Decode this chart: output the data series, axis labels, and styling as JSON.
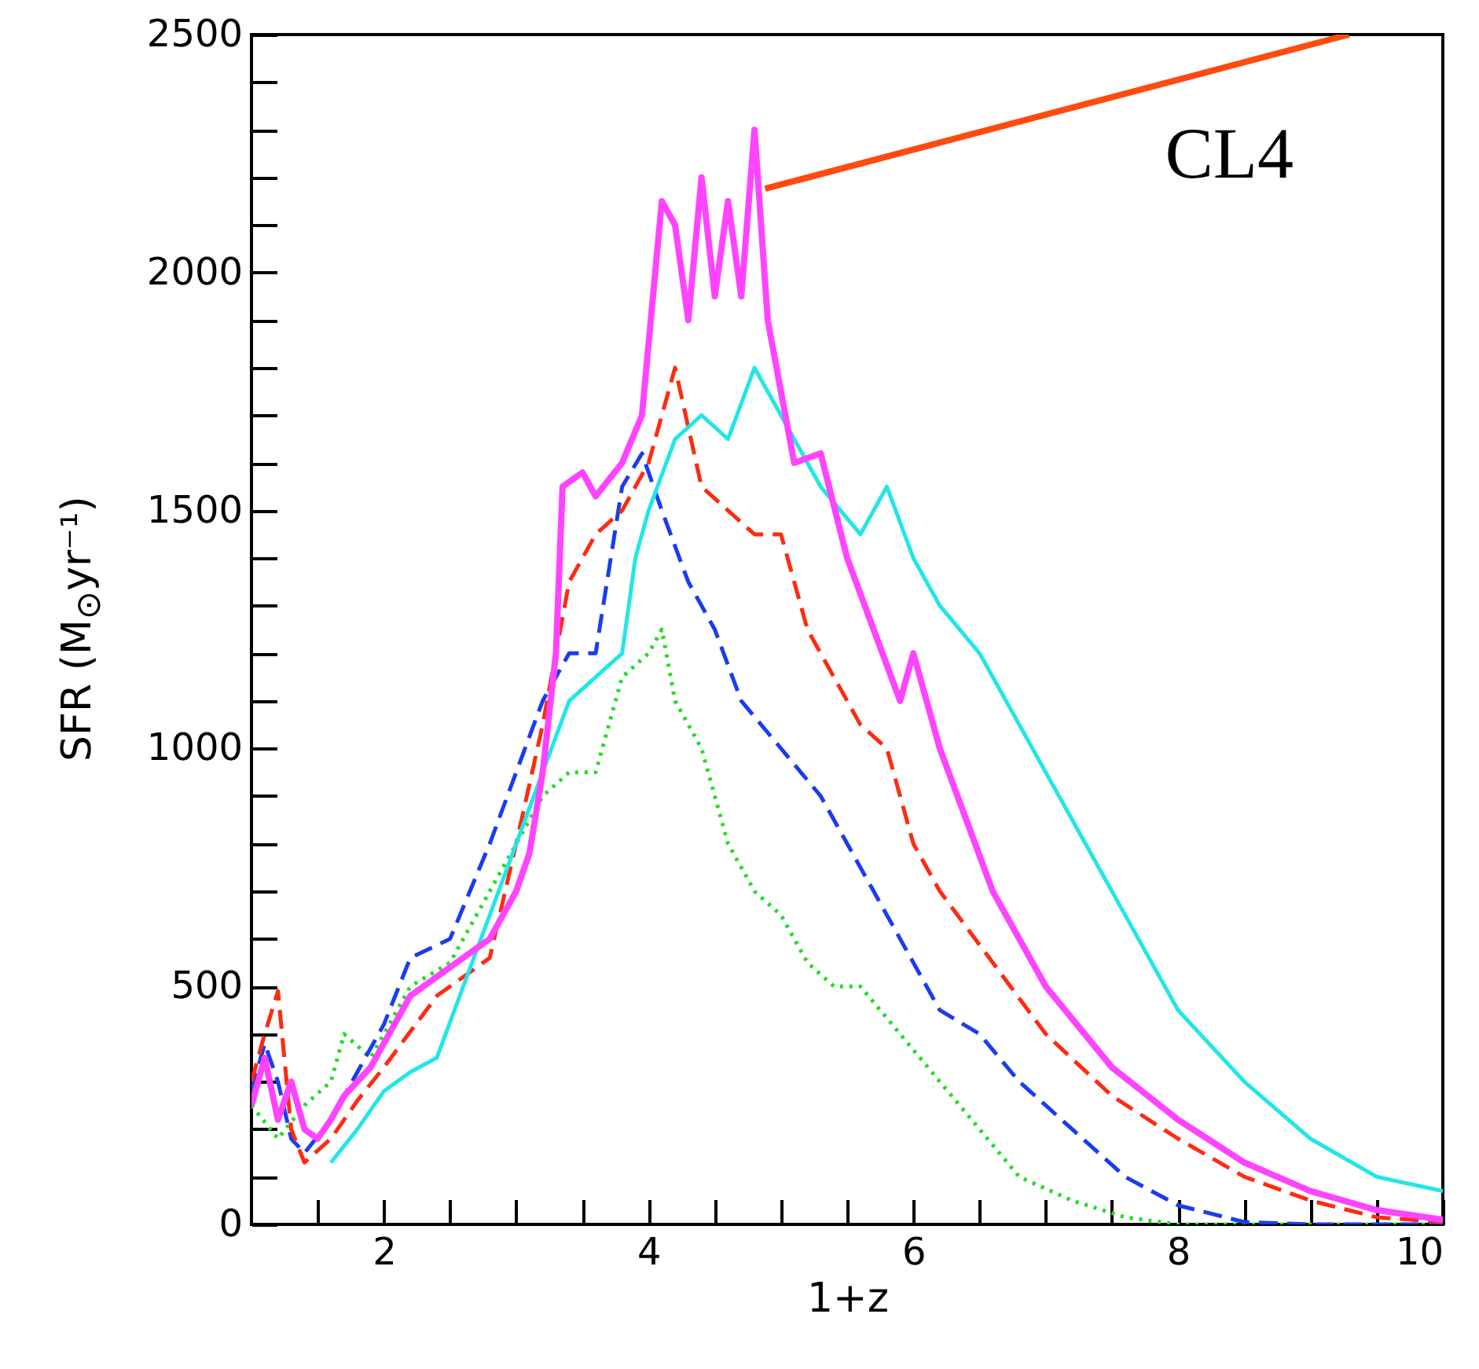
{
  "chart_data": {
    "type": "line",
    "xlabel": "1+z",
    "ylabel": "SFR (M$_{⊙}$yr⁻¹)",
    "annotations": [
      "CL4"
    ],
    "xlim": [
      1,
      10
    ],
    "ylim": [
      0,
      2500
    ],
    "xticks": [
      {
        "value": 1.5,
        "label": null
      },
      2,
      {
        "value": 2.5,
        "label": null
      },
      {
        "value": 3,
        "label": null
      },
      {
        "value": 3.5,
        "label": null
      },
      4,
      {
        "value": 4.5,
        "label": null
      },
      {
        "value": 5,
        "label": null
      },
      {
        "value": 5.5,
        "label": null
      },
      6,
      {
        "value": 6.5,
        "label": null
      },
      {
        "value": 7,
        "label": null
      },
      {
        "value": 7.5,
        "label": null
      },
      8,
      {
        "value": 8.5,
        "label": null
      },
      {
        "value": 9,
        "label": null
      },
      {
        "value": 9.5,
        "label": null
      },
      10
    ],
    "yticks": [
      0,
      {
        "value": 100,
        "label": null
      },
      {
        "value": 200,
        "label": null
      },
      {
        "value": 300,
        "label": null
      },
      {
        "value": 400,
        "label": null
      },
      500,
      {
        "value": 600,
        "label": null
      },
      {
        "value": 700,
        "label": null
      },
      {
        "value": 800,
        "label": null
      },
      {
        "value": 900,
        "label": null
      },
      1000,
      {
        "value": 1100,
        "label": null
      },
      {
        "value": 1200,
        "label": null
      },
      {
        "value": 1300,
        "label": null
      },
      {
        "value": 1400,
        "label": null
      },
      1500,
      {
        "value": 1600,
        "label": null
      },
      {
        "value": 1700,
        "label": null
      },
      {
        "value": 1800,
        "label": null
      },
      {
        "value": 1900,
        "label": null
      },
      2000,
      {
        "value": 2100,
        "label": null
      },
      {
        "value": 2200,
        "label": null
      },
      {
        "value": 2300,
        "label": null
      },
      {
        "value": 2400,
        "label": null
      },
      2500
    ],
    "grid": false,
    "series": [
      {
        "color": "#22dd22",
        "line_style": "dotted",
        "x": [
          1.0,
          1.2,
          1.4,
          1.6,
          1.7,
          1.9,
          2.2,
          2.5,
          2.8,
          3.0,
          3.2,
          3.4,
          3.6,
          3.8,
          4.0,
          4.1,
          4.2,
          4.4,
          4.6,
          4.8,
          5.0,
          5.2,
          5.4,
          5.6,
          5.9,
          6.2,
          6.5,
          6.8,
          7.2,
          7.6,
          8.0,
          10
        ],
        "values": [
          250,
          180,
          250,
          300,
          400,
          350,
          500,
          550,
          700,
          800,
          900,
          950,
          950,
          1150,
          1200,
          1250,
          1100,
          1000,
          800,
          700,
          650,
          550,
          500,
          500,
          400,
          300,
          200,
          100,
          50,
          15,
          0,
          0
        ]
      },
      {
        "color": "#1a3cf0",
        "line_style": "dashed",
        "x": [
          1.0,
          1.1,
          1.2,
          1.3,
          1.4,
          1.6,
          1.8,
          2.0,
          2.2,
          2.5,
          2.8,
          3.0,
          3.2,
          3.4,
          3.6,
          3.8,
          3.95,
          4.1,
          4.3,
          4.5,
          4.7,
          5.0,
          5.3,
          5.5,
          5.7,
          6.0,
          6.2,
          6.5,
          6.8,
          7.2,
          7.6,
          8.0,
          8.5,
          9.0,
          10
        ],
        "values": [
          280,
          380,
          300,
          180,
          150,
          220,
          320,
          420,
          560,
          600,
          800,
          950,
          1100,
          1200,
          1200,
          1550,
          1620,
          1500,
          1350,
          1250,
          1100,
          1000,
          900,
          800,
          700,
          550,
          450,
          400,
          300,
          200,
          100,
          40,
          5,
          0,
          0
        ]
      },
      {
        "color": "#ff2a10",
        "line_style": "dashed",
        "x": [
          1.0,
          1.1,
          1.2,
          1.3,
          1.4,
          1.6,
          1.8,
          2.0,
          2.4,
          2.8,
          3.0,
          3.2,
          3.4,
          3.6,
          3.8,
          4.0,
          4.2,
          4.4,
          4.6,
          4.8,
          5.0,
          5.2,
          5.4,
          5.6,
          5.8,
          6.0,
          6.2,
          6.6,
          7.0,
          7.5,
          8.0,
          8.5,
          9.0,
          9.5,
          10
        ],
        "values": [
          300,
          400,
          490,
          200,
          130,
          180,
          260,
          330,
          480,
          560,
          800,
          1050,
          1350,
          1450,
          1500,
          1600,
          1800,
          1550,
          1500,
          1450,
          1450,
          1250,
          1150,
          1050,
          1000,
          800,
          700,
          550,
          400,
          270,
          180,
          100,
          50,
          15,
          5
        ]
      },
      {
        "color": "#22e6e6",
        "line_style": "solid",
        "x": [
          1.6,
          1.8,
          2.0,
          2.2,
          2.4,
          2.6,
          2.8,
          3.0,
          3.2,
          3.4,
          3.6,
          3.8,
          3.9,
          4.0,
          4.2,
          4.4,
          4.6,
          4.8,
          5.0,
          5.3,
          5.6,
          5.8,
          6.0,
          6.2,
          6.5,
          6.8,
          7.0,
          7.3,
          7.6,
          8.0,
          8.5,
          9.0,
          9.5,
          10
        ],
        "values": [
          130,
          200,
          280,
          320,
          350,
          500,
          650,
          800,
          950,
          1100,
          1150,
          1200,
          1400,
          1500,
          1650,
          1700,
          1650,
          1800,
          1700,
          1550,
          1450,
          1550,
          1400,
          1300,
          1200,
          1050,
          950,
          800,
          650,
          450,
          300,
          180,
          100,
          70
        ]
      },
      {
        "color": "#ff44ff",
        "line_style": "solid",
        "x": [
          1.0,
          1.1,
          1.2,
          1.3,
          1.4,
          1.5,
          1.6,
          1.7,
          1.9,
          2.0,
          2.2,
          2.4,
          2.6,
          2.8,
          3.0,
          3.1,
          3.2,
          3.3,
          3.35,
          3.5,
          3.6,
          3.8,
          3.95,
          4.0,
          4.1,
          4.2,
          4.3,
          4.4,
          4.5,
          4.6,
          4.7,
          4.8,
          4.9,
          5.0,
          5.1,
          5.3,
          5.5,
          5.7,
          5.9,
          6.0,
          6.2,
          6.4,
          6.6,
          6.8,
          7.0,
          7.5,
          8.0,
          8.5,
          9.0,
          9.5,
          10
        ],
        "values": [
          250,
          350,
          220,
          300,
          200,
          180,
          220,
          270,
          330,
          380,
          480,
          520,
          560,
          600,
          700,
          780,
          950,
          1200,
          1550,
          1580,
          1530,
          1600,
          1700,
          1850,
          2150,
          2100,
          1900,
          2200,
          1950,
          2150,
          1950,
          2300,
          1900,
          1750,
          1600,
          1620,
          1400,
          1250,
          1100,
          1200,
          1000,
          850,
          700,
          600,
          500,
          330,
          220,
          130,
          70,
          30,
          10
        ]
      },
      {
        "color": "#ff4a10",
        "line_style": "solid",
        "x": [
          4.88,
          9.29
        ],
        "values": [
          2176,
          2500
        ]
      }
    ]
  }
}
